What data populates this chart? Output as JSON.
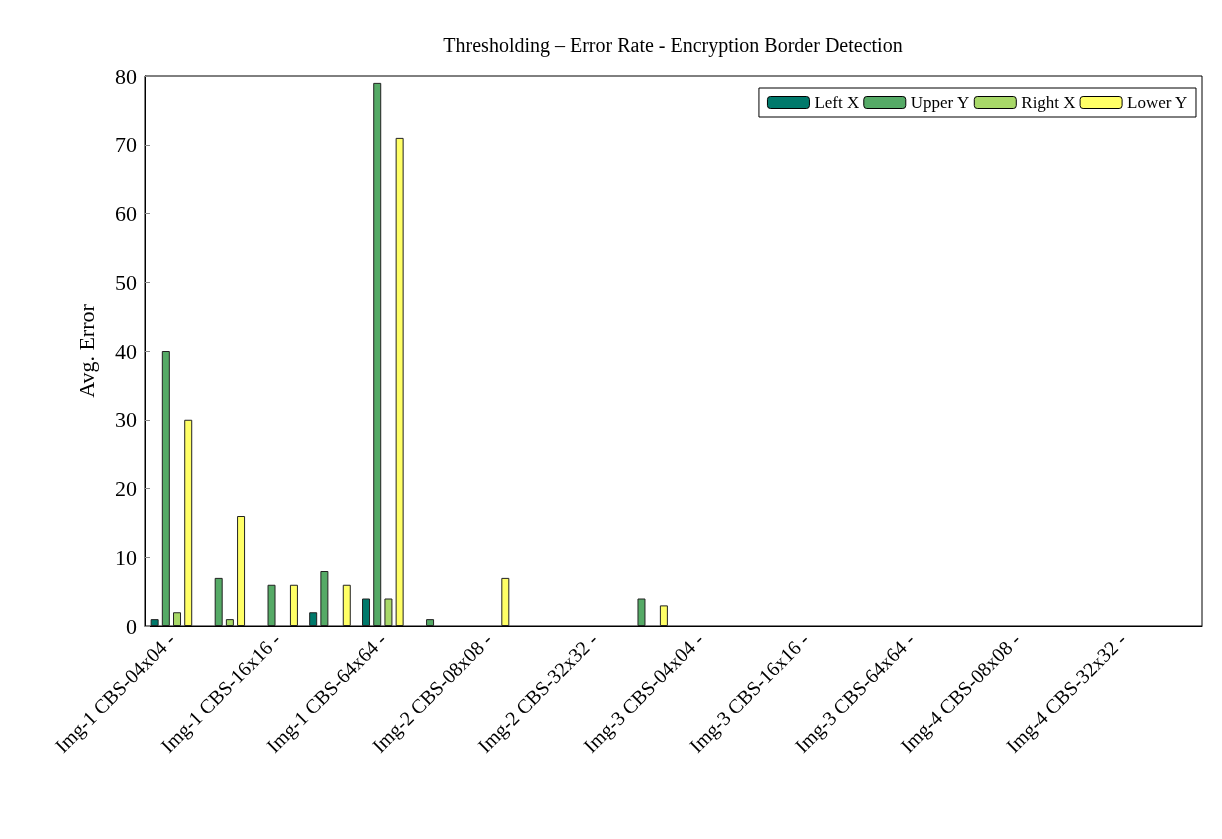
{
  "chart_data": {
    "type": "bar",
    "title": "Thresholding – Error Rate - Encryption Border Detection",
    "ylabel": "Avg. Error",
    "categories": [
      "Img-1 CBS-04x04 -",
      null,
      "Img-1 CBS-16x16 -",
      null,
      "Img-1 CBS-64x64 -",
      null,
      "Img-2 CBS-08x08 -",
      null,
      "Img-2 CBS-32x32 -",
      null,
      "Img-3 CBS-04x04 -",
      null,
      "Img-3 CBS-16x16 -",
      null,
      "Img-3 CBS-64x64 -",
      null,
      "Img-4 CBS-08x08 -",
      null,
      "Img-4 CBS-32x32 -",
      null
    ],
    "series": [
      {
        "name": "Left X",
        "color": "#00796b",
        "values": [
          1,
          0,
          0,
          2,
          4,
          0,
          0,
          0,
          0,
          0,
          0,
          0,
          0,
          0,
          0,
          0,
          0,
          0,
          0,
          0
        ]
      },
      {
        "name": "Upper Y",
        "color": "#55aa66",
        "values": [
          40,
          7,
          6,
          8,
          79,
          1,
          0,
          0,
          0,
          4,
          0,
          0,
          0,
          0,
          0,
          0,
          0,
          0,
          0,
          0
        ]
      },
      {
        "name": "Right X",
        "color": "#a8d868",
        "values": [
          2,
          1,
          0,
          0,
          4,
          0,
          0,
          0,
          0,
          0,
          0,
          0,
          0,
          0,
          0,
          0,
          0,
          0,
          0,
          0
        ]
      },
      {
        "name": "Lower Y",
        "color": "#ffff66",
        "values": [
          30,
          16,
          6,
          6,
          71,
          0,
          7,
          0,
          0,
          3,
          0,
          0,
          0,
          0,
          0,
          0,
          0,
          0,
          0,
          0
        ]
      }
    ],
    "ylim": [
      0,
      80
    ],
    "yticks": [
      0,
      10,
      20,
      30,
      40,
      50,
      60,
      70,
      80
    ],
    "grid": false,
    "legend": "top right"
  }
}
